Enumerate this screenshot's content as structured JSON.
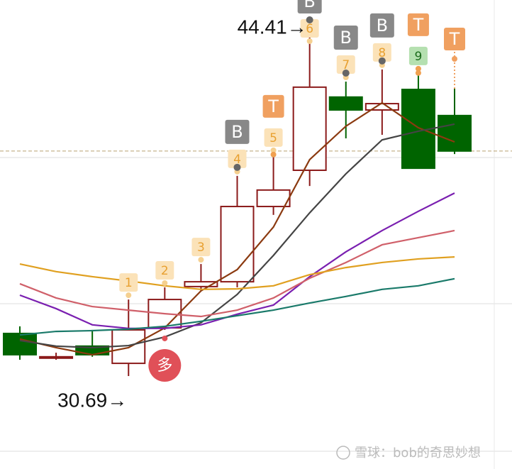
{
  "chart_data": {
    "type": "candlestick",
    "categories": [
      null,
      null,
      null,
      null,
      null,
      null,
      null,
      null,
      null,
      null,
      null,
      null,
      null
    ],
    "open": [
      32.37,
      31.4,
      31.87,
      31.19,
      32.59,
      34.22,
      34.41,
      37.38,
      38.81,
      41.7,
      41.19,
      42.0,
      40.97
    ],
    "high": [
      32.65,
      31.61,
      32.51,
      33.71,
      34.19,
      35.11,
      38.59,
      39.43,
      44.41,
      42.31,
      42.79,
      42.65,
      42.03
    ],
    "low": [
      31.33,
      31.33,
      31.45,
      30.69,
      32.51,
      34.05,
      34.19,
      37.05,
      38.19,
      40.07,
      40.21,
      38.89,
      39.45
    ],
    "close": [
      31.53,
      31.45,
      31.53,
      32.51,
      33.71,
      34.41,
      37.38,
      38.03,
      42.09,
      41.19,
      41.44,
      38.89,
      39.57
    ],
    "up_color": "#8b1a1a",
    "down_color": "#006400",
    "series": [
      {
        "color": "#8b3a10",
        "values": [
          32.15,
          31.81,
          31.53,
          31.81,
          32.59,
          34.05,
          34.89,
          36.57,
          39.23,
          40.55,
          41.47,
          40.49,
          39.93
        ]
      },
      {
        "color": "#444444",
        "values": [
          32.09,
          31.87,
          31.81,
          31.89,
          32.23,
          32.79,
          33.91,
          35.45,
          37.13,
          38.67,
          40.01,
          40.35,
          40.63
        ]
      },
      {
        "color": "#7a1fb0",
        "values": [
          33.88,
          33.35,
          32.71,
          32.57,
          32.57,
          32.71,
          33.13,
          33.49,
          34.61,
          35.59,
          36.43,
          37.19,
          37.91
        ]
      },
      {
        "color": "#d0606a",
        "values": [
          34.33,
          33.77,
          33.43,
          33.29,
          33.15,
          33.04,
          33.29,
          33.77,
          34.55,
          35.17,
          35.87,
          36.15,
          36.43
        ]
      },
      {
        "color": "#e0a020",
        "values": [
          35.11,
          34.81,
          34.61,
          34.44,
          34.25,
          34.11,
          34.13,
          34.25,
          34.69,
          34.97,
          35.17,
          35.31,
          35.39
        ]
      },
      {
        "color": "#1a7a6a",
        "values": [
          32.31,
          32.45,
          32.48,
          32.54,
          32.65,
          32.85,
          33.07,
          33.29,
          33.57,
          33.83,
          34.11,
          34.25,
          34.53
        ]
      }
    ],
    "ref_line": 39.57,
    "ylim": [
      27.02,
      45.53
    ],
    "count_labels": [
      null,
      null,
      null,
      "1",
      "2",
      "3",
      "4",
      "5",
      "6",
      "7",
      "8",
      "9",
      null
    ],
    "sell_labels": [
      null,
      null,
      null,
      null,
      null,
      null,
      null,
      "T",
      null,
      null,
      null,
      "T",
      "T"
    ],
    "buy_labels": [
      null,
      null,
      null,
      null,
      null,
      null,
      "B",
      null,
      "B",
      "B",
      "B",
      null,
      null
    ],
    "long_labels": [
      null,
      null,
      null,
      null,
      "多",
      null,
      null,
      null,
      null,
      null,
      null,
      null,
      null
    ],
    "max_label": "44.41→",
    "min_label": "30.69→"
  },
  "watermark": "雪球：bob的奇思妙想"
}
